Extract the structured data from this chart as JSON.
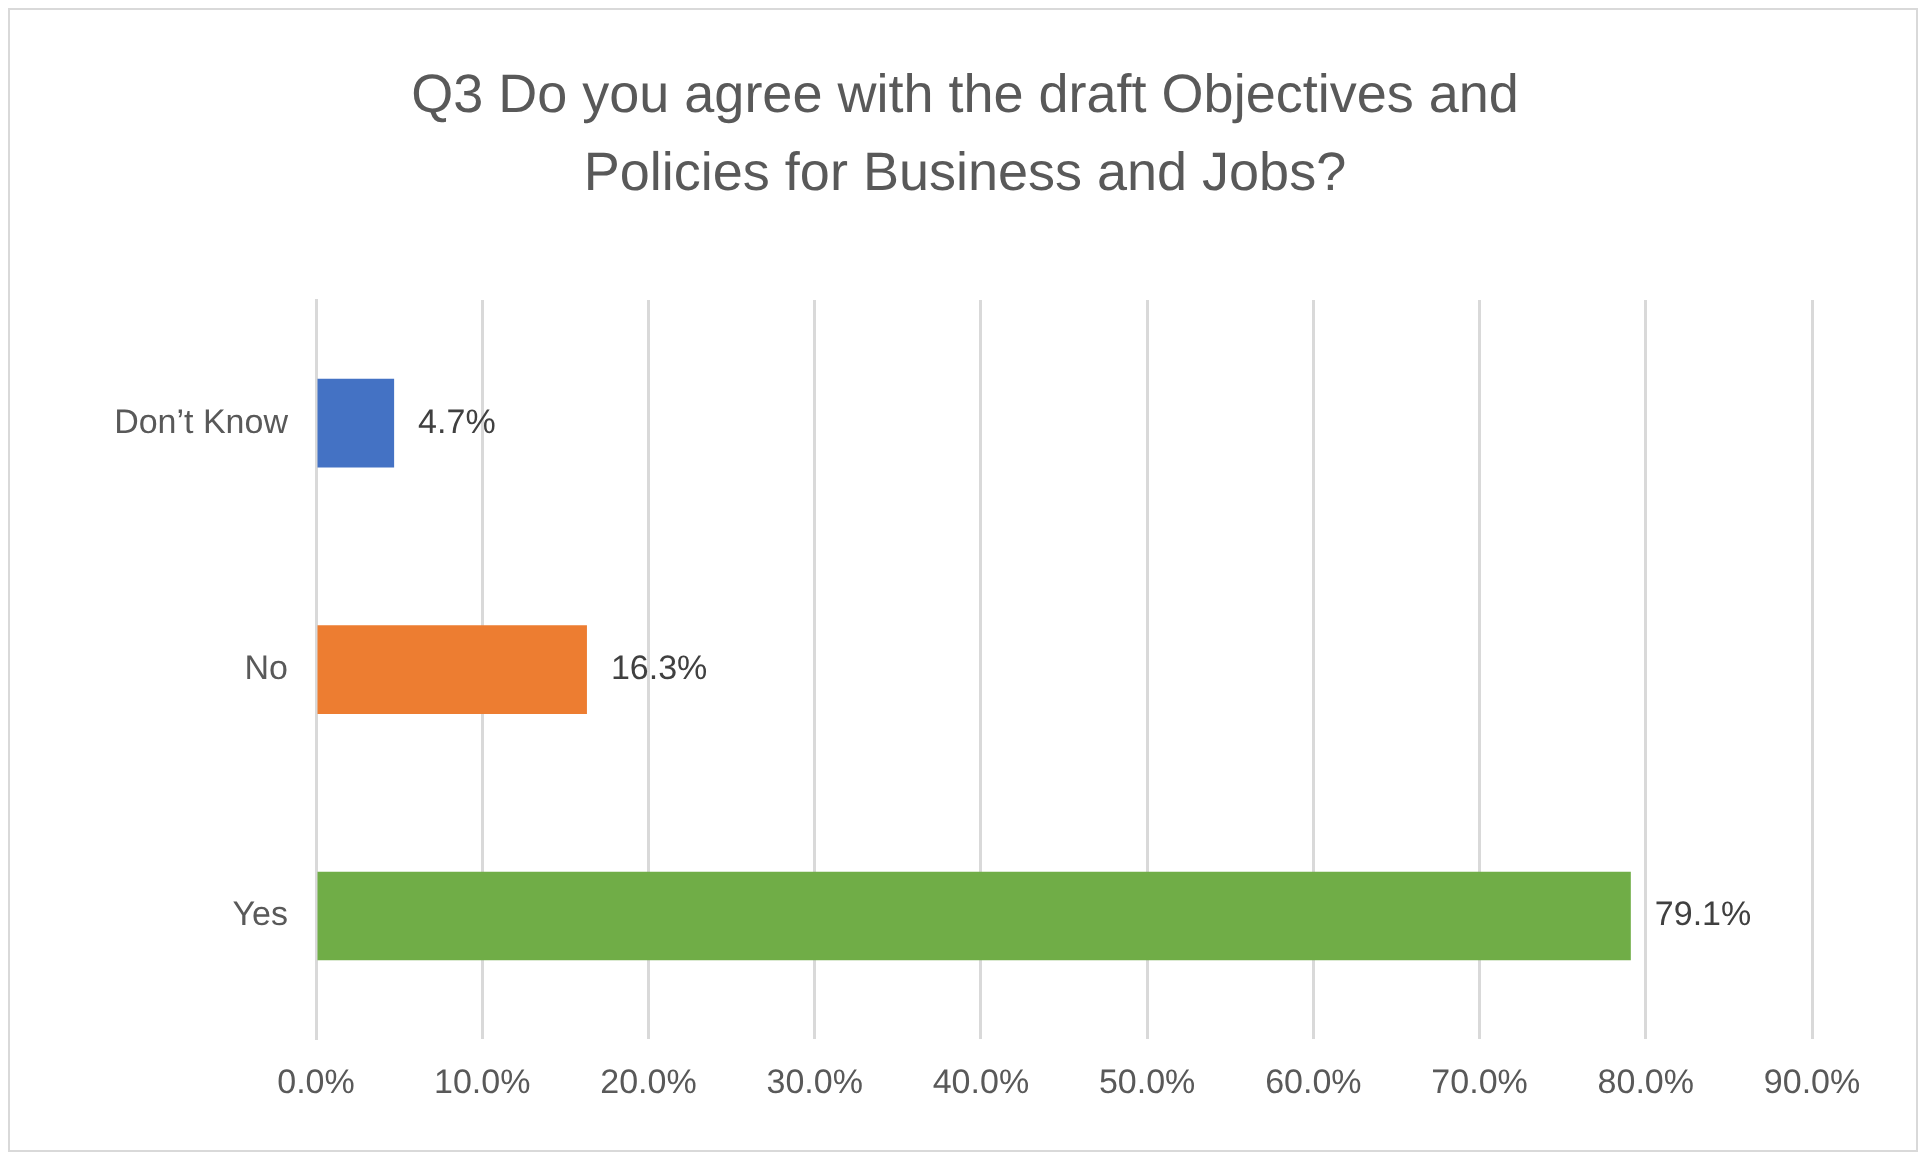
{
  "chart_data": {
    "type": "bar",
    "orientation": "horizontal",
    "title": "Q3 Do you agree with the draft Objectives and Policies for Business and Jobs?",
    "categories": [
      "Don’t Know",
      "No",
      "Yes"
    ],
    "values": [
      4.7,
      16.3,
      79.1
    ],
    "colors": [
      "#4472c4",
      "#ed7d31",
      "#70ad47"
    ],
    "value_labels": [
      "4.7%",
      "16.3%",
      "79.1%"
    ],
    "xlim": [
      0,
      90
    ],
    "xticks": [
      {
        "value": 0,
        "label": "0.0%"
      },
      {
        "value": 10,
        "label": "10.0%"
      },
      {
        "value": 20,
        "label": "20.0%"
      },
      {
        "value": 30,
        "label": "30.0%"
      },
      {
        "value": 40,
        "label": "40.0%"
      },
      {
        "value": 50,
        "label": "50.0%"
      },
      {
        "value": 60,
        "label": "60.0%"
      },
      {
        "value": 70,
        "label": "70.0%"
      },
      {
        "value": 80,
        "label": "80.0%"
      },
      {
        "value": 90,
        "label": "90.0%"
      }
    ],
    "grid": "x",
    "legend": false
  }
}
